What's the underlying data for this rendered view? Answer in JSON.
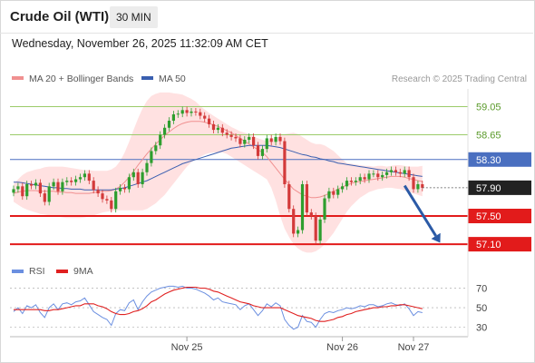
{
  "header": {
    "title": "Crude Oil (WTI)",
    "timeframe": "30 MIN",
    "datetime": "Wednesday, November 26, 2025 11:32:09 AM CET"
  },
  "colors": {
    "bullish": "#2e9e2e",
    "bearish": "#d33a3a",
    "bollinger_band": "#ffdede",
    "ma20": "#f09090",
    "ma50": "#3a5fb0",
    "resistance_green": "#9ccb6a",
    "resistance_blue": "#4a6fc0",
    "support_red": "#e21b1b",
    "arrow": "#2b5aa6",
    "rsi": "#6b8fe0",
    "rsi_ma": "#e02020"
  },
  "chart_data": [
    {
      "type": "candlestick",
      "title": "Crude Oil (WTI)",
      "timeframe": "30 MIN",
      "legend": [
        {
          "name": "MA 20 + Bollinger Bands",
          "color": "#f09090"
        },
        {
          "name": "MA 50",
          "color": "#3a5fb0"
        }
      ],
      "watermark": "Research © 2025 Trading Central",
      "ylim": [
        56.96,
        59.3
      ],
      "x_tick_labels": [
        {
          "label": "Nov 25",
          "bar": 39
        },
        {
          "label": "Nov 26",
          "bar": 74
        },
        {
          "label": "Nov 27",
          "bar": 90
        }
      ],
      "levels": [
        {
          "value": 59.05,
          "label": "59.05",
          "style": "resistance",
          "color": "#9ccb6a"
        },
        {
          "value": 58.65,
          "label": "58.65",
          "style": "resistance",
          "color": "#9ccb6a"
        },
        {
          "value": 58.3,
          "label": "58.30",
          "style": "pivot",
          "color": "#4a6fc0"
        },
        {
          "value": 57.5,
          "label": "57.50",
          "style": "support",
          "color": "#e21b1b"
        },
        {
          "value": 57.1,
          "label": "57.10",
          "style": "support",
          "color": "#e21b1b"
        }
      ],
      "last_price": {
        "value": 57.9,
        "label": "57.90"
      },
      "forecast_arrow": {
        "from_bar": 88,
        "from_value": 57.93,
        "to_bar": 96,
        "to_value": 57.12
      },
      "closes": [
        57.88,
        57.92,
        57.78,
        57.95,
        57.93,
        57.97,
        57.82,
        57.7,
        57.92,
        57.98,
        57.85,
        57.98,
        58.0,
        57.98,
        58.02,
        58.05,
        58.1,
        58.0,
        57.87,
        57.82,
        57.74,
        57.72,
        57.6,
        57.85,
        57.9,
        57.88,
        58.05,
        58.12,
        57.95,
        58.12,
        58.25,
        58.42,
        58.5,
        58.65,
        58.75,
        58.85,
        58.94,
        58.95,
        59.0,
        58.96,
        58.98,
        58.97,
        58.92,
        58.88,
        58.8,
        58.72,
        58.75,
        58.68,
        58.65,
        58.62,
        58.6,
        58.52,
        58.58,
        58.62,
        58.5,
        58.35,
        58.45,
        58.6,
        58.55,
        58.62,
        58.56,
        57.95,
        57.6,
        57.25,
        57.3,
        57.95,
        57.55,
        57.5,
        57.15,
        57.45,
        57.75,
        57.85,
        57.8,
        57.88,
        57.92,
        58.0,
        57.98,
        58.0,
        58.05,
        58.02,
        58.1,
        58.1,
        58.05,
        58.08,
        58.12,
        58.15,
        58.12,
        58.1,
        58.15,
        58.05,
        57.88,
        57.95,
        57.9
      ],
      "bb_upper": [
        57.95,
        58.02,
        58.08,
        58.12,
        58.14,
        58.16,
        58.17,
        58.19,
        58.2,
        58.2,
        58.2,
        58.2,
        58.19,
        58.18,
        58.17,
        58.16,
        58.15,
        58.15,
        58.14,
        58.14,
        58.14,
        58.14,
        58.16,
        58.2,
        58.28,
        58.4,
        58.55,
        58.72,
        58.88,
        59.02,
        59.13,
        59.2,
        59.23,
        59.25,
        59.25,
        59.25,
        59.24,
        59.23,
        59.22,
        59.19,
        59.16,
        59.12,
        59.06,
        59.01,
        58.96,
        58.92,
        58.88,
        58.84,
        58.8,
        58.76,
        58.73,
        58.7,
        58.68,
        58.66,
        58.63,
        58.6,
        58.58,
        58.56,
        58.58,
        58.6,
        58.64,
        58.66,
        58.67,
        58.68,
        58.66,
        58.62,
        58.58,
        58.54,
        58.52,
        58.52,
        58.5,
        58.46,
        58.42,
        58.36,
        58.3,
        58.25,
        58.24,
        58.23,
        58.22,
        58.21,
        58.21,
        58.2,
        58.21,
        58.21,
        58.2,
        58.21,
        58.22,
        58.22,
        58.21,
        58.2,
        58.2,
        58.2,
        58.21
      ],
      "bb_lower": [
        57.7,
        57.66,
        57.62,
        57.59,
        57.57,
        57.55,
        57.53,
        57.52,
        57.51,
        57.5,
        57.49,
        57.48,
        57.47,
        57.47,
        57.47,
        57.47,
        57.48,
        57.49,
        57.51,
        57.53,
        57.55,
        57.56,
        57.57,
        57.58,
        57.58,
        57.58,
        57.58,
        57.58,
        57.58,
        57.58,
        57.6,
        57.64,
        57.68,
        57.74,
        57.8,
        57.88,
        57.96,
        58.04,
        58.12,
        58.2,
        58.26,
        58.3,
        58.34,
        58.37,
        58.39,
        58.4,
        58.4,
        58.4,
        58.38,
        58.34,
        58.3,
        58.26,
        58.22,
        58.18,
        58.14,
        58.1,
        58.06,
        58.02,
        57.9,
        57.72,
        57.5,
        57.32,
        57.2,
        57.1,
        57.04,
        57.0,
        56.98,
        56.98,
        57.0,
        57.04,
        57.1,
        57.18,
        57.26,
        57.36,
        57.46,
        57.56,
        57.64,
        57.7,
        57.76,
        57.8,
        57.84,
        57.86,
        57.88,
        57.89,
        57.9,
        57.9,
        57.89,
        57.88,
        57.86,
        57.84,
        57.82,
        57.8,
        57.78
      ],
      "ma20": [
        57.82,
        57.84,
        57.85,
        57.86,
        57.86,
        57.86,
        57.85,
        57.85,
        57.85,
        57.85,
        57.84,
        57.84,
        57.83,
        57.83,
        57.82,
        57.82,
        57.82,
        57.82,
        57.83,
        57.84,
        57.85,
        57.85,
        57.86,
        57.88,
        57.92,
        57.98,
        58.05,
        58.13,
        58.22,
        58.3,
        58.38,
        58.45,
        58.52,
        58.58,
        58.64,
        58.69,
        58.74,
        58.78,
        58.81,
        58.83,
        58.84,
        58.84,
        58.84,
        58.83,
        58.81,
        58.79,
        58.77,
        58.74,
        58.71,
        58.68,
        58.64,
        58.6,
        58.56,
        58.52,
        58.48,
        58.44,
        58.4,
        58.34,
        58.26,
        58.18,
        58.1,
        58.02,
        57.95,
        57.88,
        57.84,
        57.8,
        57.78,
        57.76,
        57.76,
        57.77,
        57.79,
        57.82,
        57.85,
        57.88,
        57.91,
        57.94,
        57.96,
        57.98,
        57.99,
        58.0,
        58.01,
        58.02,
        58.03,
        58.04,
        58.05,
        58.06,
        58.06,
        58.06,
        58.05,
        58.03,
        58.02,
        58.0,
        57.99
      ],
      "ma50": [
        57.98,
        57.98,
        57.97,
        57.96,
        57.95,
        57.94,
        57.93,
        57.92,
        57.91,
        57.9,
        57.9,
        57.89,
        57.89,
        57.88,
        57.88,
        57.88,
        57.87,
        57.87,
        57.87,
        57.87,
        57.87,
        57.87,
        57.87,
        57.88,
        57.89,
        57.9,
        57.92,
        57.94,
        57.96,
        57.98,
        58.0,
        58.03,
        58.06,
        58.09,
        58.12,
        58.15,
        58.18,
        58.21,
        58.24,
        58.26,
        58.28,
        58.3,
        58.32,
        58.34,
        58.36,
        58.38,
        58.4,
        58.42,
        58.44,
        58.46,
        58.47,
        58.48,
        58.49,
        58.5,
        58.5,
        58.5,
        58.5,
        58.5,
        58.49,
        58.48,
        58.47,
        58.45,
        58.43,
        58.41,
        58.39,
        58.37,
        58.36,
        58.34,
        58.33,
        58.31,
        58.3,
        58.28,
        58.27,
        58.25,
        58.24,
        58.23,
        58.22,
        58.21,
        58.2,
        58.19,
        58.18,
        58.17,
        58.16,
        58.15,
        58.14,
        58.13,
        58.12,
        58.11,
        58.1,
        58.09,
        58.08,
        58.07,
        58.06
      ]
    },
    {
      "type": "line",
      "legend": [
        {
          "name": "RSI",
          "color": "#6b8fe0"
        },
        {
          "name": "9MA",
          "color": "#e02020"
        }
      ],
      "ylim": [
        25,
        77
      ],
      "y_ticks": [
        70,
        50,
        30
      ],
      "dashed_levels": [
        70,
        50,
        30
      ],
      "series": [
        {
          "name": "RSI",
          "values": [
            46,
            50,
            44,
            52,
            50,
            53,
            45,
            40,
            50,
            54,
            48,
            54,
            55,
            53,
            56,
            57,
            60,
            53,
            46,
            43,
            40,
            38,
            32,
            44,
            48,
            47,
            55,
            58,
            48,
            56,
            62,
            66,
            68,
            70,
            71,
            72,
            72,
            71,
            72,
            70,
            70,
            69,
            67,
            65,
            62,
            58,
            60,
            56,
            55,
            54,
            53,
            48,
            52,
            54,
            48,
            42,
            47,
            54,
            51,
            55,
            52,
            38,
            32,
            28,
            30,
            42,
            36,
            35,
            30,
            38,
            44,
            46,
            45,
            47,
            48,
            50,
            49,
            50,
            52,
            51,
            53,
            53,
            51,
            52,
            54,
            55,
            53,
            52,
            54,
            49,
            42,
            46,
            45
          ]
        },
        {
          "name": "9MA",
          "values": [
            48,
            48,
            48,
            48,
            48,
            48,
            48,
            47,
            47,
            48,
            48,
            49,
            50,
            51,
            52,
            52,
            54,
            54,
            54,
            52,
            51,
            49,
            46,
            44,
            43,
            43,
            44,
            46,
            47,
            49,
            52,
            56,
            58,
            61,
            64,
            66,
            68,
            69,
            70,
            71,
            71,
            71,
            70,
            70,
            69,
            67,
            66,
            64,
            62,
            60,
            58,
            56,
            55,
            54,
            52,
            51,
            50,
            50,
            50,
            50,
            50,
            48,
            46,
            44,
            42,
            41,
            40,
            39,
            37,
            36,
            36,
            37,
            38,
            40,
            41,
            43,
            44,
            46,
            47,
            48,
            49,
            50,
            50,
            51,
            51,
            52,
            52,
            53,
            53,
            52,
            51,
            50,
            49
          ]
        }
      ]
    }
  ]
}
